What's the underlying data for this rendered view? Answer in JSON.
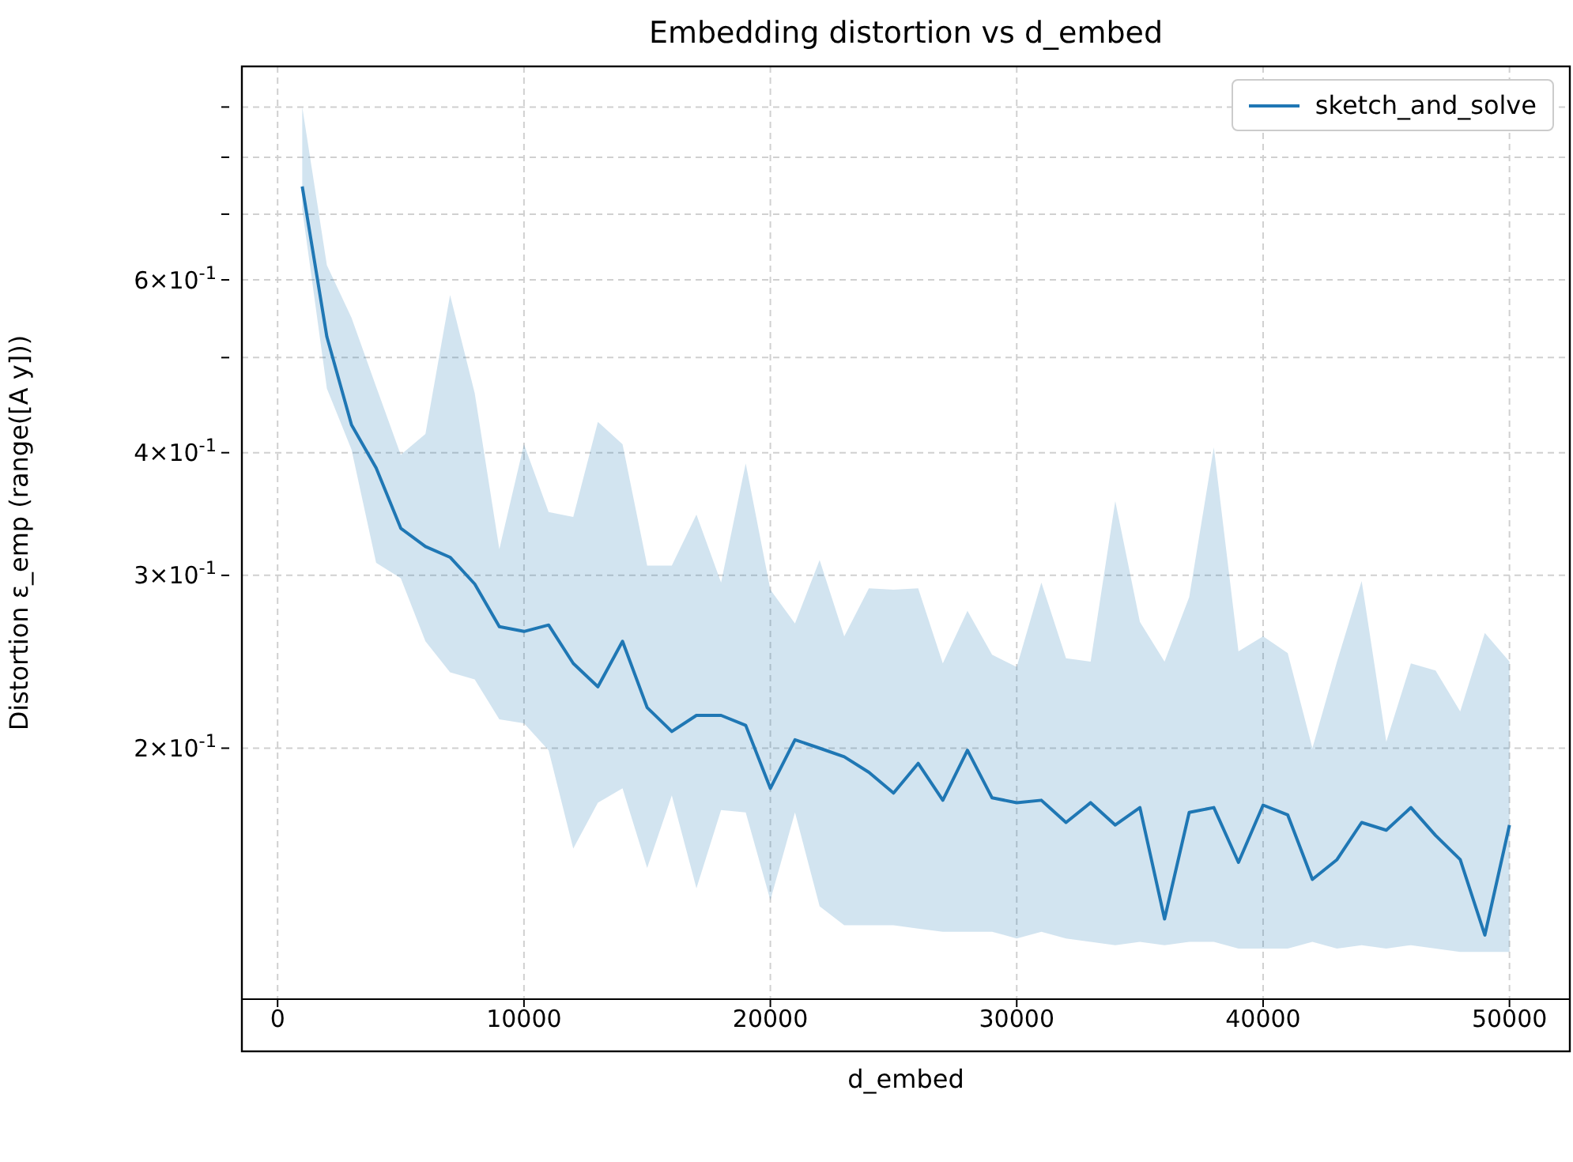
{
  "chart_data": {
    "type": "line",
    "title": "Embedding distortion vs d_embed",
    "xlabel": "d_embed",
    "ylabel": "Distortion ε_emp (range([A y]))",
    "x": [
      1000,
      2000,
      3000,
      4000,
      5000,
      6000,
      7000,
      8000,
      9000,
      10000,
      11000,
      12000,
      13000,
      14000,
      15000,
      16000,
      17000,
      18000,
      19000,
      20000,
      21000,
      22000,
      23000,
      24000,
      25000,
      26000,
      27000,
      28000,
      29000,
      30000,
      31000,
      32000,
      33000,
      34000,
      35000,
      36000,
      37000,
      38000,
      39000,
      40000,
      41000,
      42000,
      43000,
      44000,
      45000,
      46000,
      47000,
      48000,
      49000,
      50000
    ],
    "series": [
      {
        "name": "sketch_and_solve",
        "color": "#1f77b4",
        "values": [
          0.747,
          0.525,
          0.427,
          0.386,
          0.335,
          0.321,
          0.313,
          0.294,
          0.266,
          0.263,
          0.267,
          0.244,
          0.231,
          0.257,
          0.22,
          0.208,
          0.216,
          0.216,
          0.211,
          0.182,
          0.204,
          0.2,
          0.196,
          0.189,
          0.18,
          0.193,
          0.177,
          0.199,
          0.178,
          0.176,
          0.177,
          0.168,
          0.176,
          0.167,
          0.174,
          0.134,
          0.172,
          0.174,
          0.153,
          0.175,
          0.171,
          0.147,
          0.154,
          0.168,
          0.165,
          0.174,
          0.163,
          0.154,
          0.129,
          0.167
        ],
        "lower": [
          0.708,
          0.465,
          0.403,
          0.309,
          0.298,
          0.257,
          0.239,
          0.235,
          0.214,
          0.212,
          0.199,
          0.158,
          0.176,
          0.182,
          0.151,
          0.179,
          0.144,
          0.173,
          0.172,
          0.14,
          0.172,
          0.138,
          0.132,
          0.132,
          0.132,
          0.131,
          0.13,
          0.13,
          0.13,
          0.128,
          0.13,
          0.128,
          0.127,
          0.126,
          0.127,
          0.126,
          0.127,
          0.127,
          0.125,
          0.125,
          0.125,
          0.127,
          0.125,
          0.126,
          0.125,
          0.126,
          0.125,
          0.124,
          0.124,
          0.124
        ],
        "upper": [
          0.9,
          0.621,
          0.549,
          0.467,
          0.398,
          0.418,
          0.579,
          0.46,
          0.319,
          0.408,
          0.348,
          0.344,
          0.43,
          0.408,
          0.307,
          0.307,
          0.346,
          0.295,
          0.39,
          0.29,
          0.268,
          0.311,
          0.26,
          0.291,
          0.29,
          0.291,
          0.244,
          0.276,
          0.249,
          0.242,
          0.295,
          0.247,
          0.245,
          0.357,
          0.269,
          0.245,
          0.285,
          0.405,
          0.251,
          0.26,
          0.25,
          0.2,
          0.245,
          0.296,
          0.203,
          0.244,
          0.24,
          0.218,
          0.262,
          0.245
        ]
      }
    ],
    "xlim": [
      -1450,
      52450
    ],
    "xticks": [
      0,
      10000,
      20000,
      30000,
      40000,
      50000
    ],
    "ylim": [
      0.111,
      0.99
    ],
    "yticks": [
      {
        "value": 0.2,
        "label": "2×10$^{-1}$"
      },
      {
        "value": 0.3,
        "label": "3×10$^{-1}$"
      },
      {
        "value": 0.4,
        "label": "4×10$^{-1}$"
      },
      {
        "value": 0.5,
        "label": null
      },
      {
        "value": 0.6,
        "label": "6×10$^{-1}$"
      },
      {
        "value": 0.7,
        "label": null
      },
      {
        "value": 0.8,
        "label": null
      },
      {
        "value": 0.9,
        "label": null
      }
    ],
    "log": "y",
    "grid": true,
    "legend": "top right"
  }
}
